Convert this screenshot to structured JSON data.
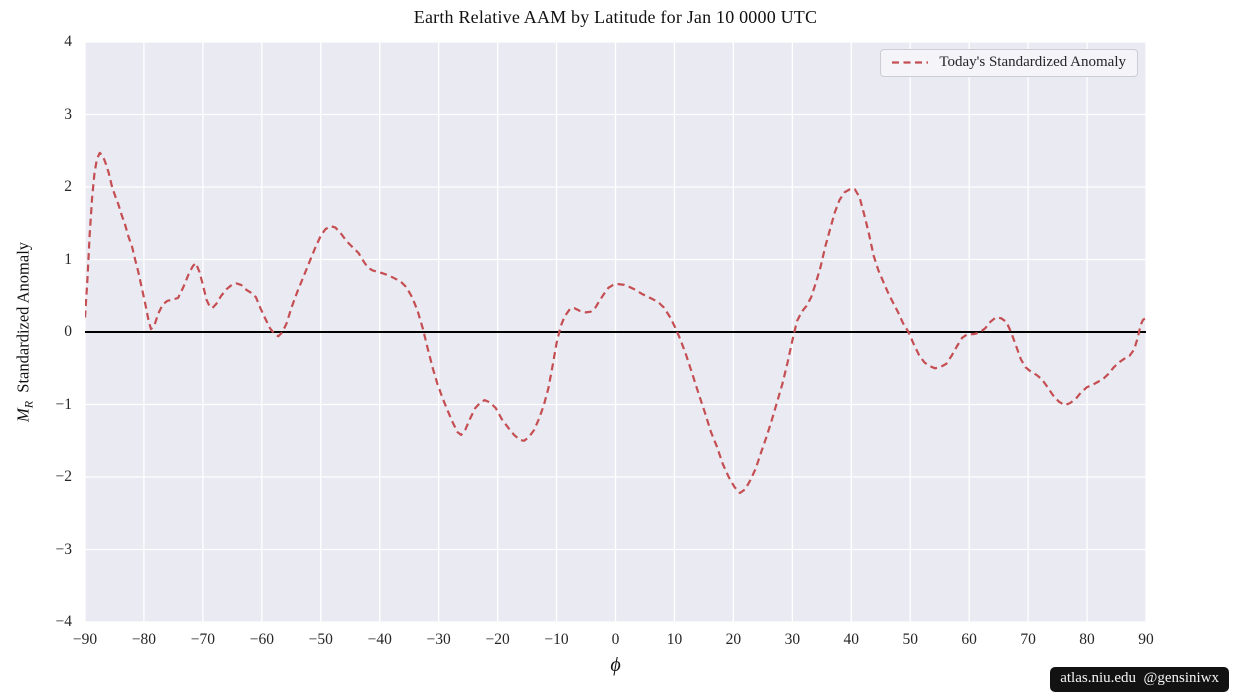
{
  "title": "Earth Relative AAM by Latitude for Jan 10 0000 UTC",
  "watermark": "atlas.niu.edu  @gensiniwx",
  "legend": {
    "label": "Today's Standardized Anomaly"
  },
  "axes": {
    "xlabel": "ϕ",
    "ylabel_m": "M",
    "ylabel_sub": "R",
    "ylabel_text": "  Standardized Anomaly"
  },
  "colors": {
    "figure_bg": "#ffffff",
    "plot_bg": "#eaeaf2",
    "grid": "#ffffff",
    "zero_line": "#000000",
    "series_red": "#c44e52",
    "text": "#262626",
    "watermark_bg": "#121212"
  },
  "chart_data": {
    "type": "line",
    "title": "Earth Relative AAM by Latitude for Jan 10 0000 UTC",
    "xlabel": "ϕ (latitude, degrees)",
    "ylabel": "M_R Standardized Anomaly",
    "xlim": [
      -90,
      90
    ],
    "ylim": [
      -4,
      4
    ],
    "x_ticks": [
      -90,
      -80,
      -70,
      -60,
      -50,
      -40,
      -30,
      -20,
      -10,
      0,
      10,
      20,
      30,
      40,
      50,
      60,
      70,
      80,
      90
    ],
    "y_ticks": [
      -4,
      -3,
      -2,
      -1,
      0,
      1,
      2,
      3,
      4
    ],
    "grid": true,
    "zero_line_y": 0,
    "legend_position": "upper right",
    "series": [
      {
        "name": "Today's Standardized Anomaly",
        "color": "#c44e52",
        "style": "dashed",
        "points": [
          [
            -90.0,
            0.2
          ],
          [
            -89.6,
            0.72
          ],
          [
            -89.2,
            1.35
          ],
          [
            -88.8,
            1.85
          ],
          [
            -88.4,
            2.18
          ],
          [
            -88.0,
            2.38
          ],
          [
            -87.5,
            2.47
          ],
          [
            -87.0,
            2.43
          ],
          [
            -86.5,
            2.33
          ],
          [
            -86.0,
            2.2
          ],
          [
            -85.4,
            2.0
          ],
          [
            -84.9,
            1.88
          ],
          [
            -84.3,
            1.75
          ],
          [
            -83.8,
            1.62
          ],
          [
            -83.2,
            1.48
          ],
          [
            -82.6,
            1.31
          ],
          [
            -82.0,
            1.17
          ],
          [
            -81.5,
            1.0
          ],
          [
            -81.0,
            0.84
          ],
          [
            -80.4,
            0.62
          ],
          [
            -79.8,
            0.4
          ],
          [
            -79.2,
            0.15
          ],
          [
            -78.8,
            0.04
          ],
          [
            -78.2,
            0.1
          ],
          [
            -77.6,
            0.25
          ],
          [
            -76.8,
            0.38
          ],
          [
            -76.0,
            0.43
          ],
          [
            -75.0,
            0.45
          ],
          [
            -74.2,
            0.47
          ],
          [
            -73.3,
            0.62
          ],
          [
            -72.4,
            0.8
          ],
          [
            -71.7,
            0.91
          ],
          [
            -71.2,
            0.95
          ],
          [
            -70.6,
            0.83
          ],
          [
            -70.0,
            0.65
          ],
          [
            -69.4,
            0.45
          ],
          [
            -68.9,
            0.36
          ],
          [
            -68.4,
            0.33
          ],
          [
            -67.7,
            0.39
          ],
          [
            -66.9,
            0.5
          ],
          [
            -66.0,
            0.59
          ],
          [
            -65.1,
            0.65
          ],
          [
            -64.3,
            0.67
          ],
          [
            -63.5,
            0.65
          ],
          [
            -62.6,
            0.58
          ],
          [
            -61.8,
            0.54
          ],
          [
            -61.0,
            0.48
          ],
          [
            -60.2,
            0.32
          ],
          [
            -59.4,
            0.18
          ],
          [
            -58.6,
            0.05
          ],
          [
            -57.8,
            -0.03
          ],
          [
            -57.2,
            -0.06
          ],
          [
            -56.5,
            0.0
          ],
          [
            -55.8,
            0.12
          ],
          [
            -55.0,
            0.33
          ],
          [
            -54.0,
            0.55
          ],
          [
            -53.0,
            0.75
          ],
          [
            -52.0,
            0.95
          ],
          [
            -51.0,
            1.15
          ],
          [
            -50.0,
            1.33
          ],
          [
            -49.2,
            1.42
          ],
          [
            -48.3,
            1.46
          ],
          [
            -47.5,
            1.44
          ],
          [
            -46.5,
            1.35
          ],
          [
            -45.6,
            1.25
          ],
          [
            -44.6,
            1.17
          ],
          [
            -43.6,
            1.09
          ],
          [
            -42.7,
            0.97
          ],
          [
            -42.0,
            0.89
          ],
          [
            -41.2,
            0.85
          ],
          [
            -40.4,
            0.83
          ],
          [
            -39.5,
            0.81
          ],
          [
            -38.5,
            0.78
          ],
          [
            -37.5,
            0.74
          ],
          [
            -36.5,
            0.7
          ],
          [
            -35.5,
            0.62
          ],
          [
            -34.5,
            0.48
          ],
          [
            -33.6,
            0.3
          ],
          [
            -32.7,
            0.05
          ],
          [
            -31.8,
            -0.25
          ],
          [
            -31.0,
            -0.5
          ],
          [
            -30.2,
            -0.72
          ],
          [
            -29.3,
            -0.92
          ],
          [
            -28.5,
            -1.08
          ],
          [
            -27.6,
            -1.25
          ],
          [
            -26.8,
            -1.38
          ],
          [
            -26.2,
            -1.42
          ],
          [
            -25.5,
            -1.35
          ],
          [
            -24.7,
            -1.2
          ],
          [
            -23.8,
            -1.05
          ],
          [
            -23.0,
            -0.98
          ],
          [
            -22.2,
            -0.94
          ],
          [
            -21.3,
            -0.97
          ],
          [
            -20.3,
            -1.05
          ],
          [
            -19.3,
            -1.2
          ],
          [
            -18.2,
            -1.32
          ],
          [
            -17.2,
            -1.42
          ],
          [
            -16.2,
            -1.49
          ],
          [
            -15.5,
            -1.5
          ],
          [
            -14.7,
            -1.45
          ],
          [
            -13.8,
            -1.35
          ],
          [
            -13.0,
            -1.2
          ],
          [
            -12.2,
            -1.02
          ],
          [
            -11.4,
            -0.78
          ],
          [
            -10.7,
            -0.48
          ],
          [
            -10.0,
            -0.15
          ],
          [
            -9.3,
            0.08
          ],
          [
            -8.6,
            0.22
          ],
          [
            -7.7,
            0.32
          ],
          [
            -7.0,
            0.33
          ],
          [
            -6.0,
            0.29
          ],
          [
            -5.0,
            0.27
          ],
          [
            -4.2,
            0.28
          ],
          [
            -3.4,
            0.34
          ],
          [
            -2.8,
            0.42
          ],
          [
            -2.0,
            0.52
          ],
          [
            -1.2,
            0.61
          ],
          [
            -0.4,
            0.65
          ],
          [
            0.5,
            0.66
          ],
          [
            1.5,
            0.65
          ],
          [
            2.4,
            0.62
          ],
          [
            3.4,
            0.58
          ],
          [
            4.4,
            0.53
          ],
          [
            5.4,
            0.49
          ],
          [
            6.4,
            0.45
          ],
          [
            7.4,
            0.4
          ],
          [
            8.2,
            0.34
          ],
          [
            9.3,
            0.2
          ],
          [
            10.2,
            0.05
          ],
          [
            11.0,
            -0.1
          ],
          [
            12.0,
            -0.32
          ],
          [
            13.0,
            -0.57
          ],
          [
            14.1,
            -0.85
          ],
          [
            15.2,
            -1.12
          ],
          [
            16.2,
            -1.38
          ],
          [
            17.2,
            -1.58
          ],
          [
            18.2,
            -1.82
          ],
          [
            19.2,
            -2.0
          ],
          [
            20.2,
            -2.14
          ],
          [
            21.1,
            -2.22
          ],
          [
            22.0,
            -2.17
          ],
          [
            22.9,
            -2.04
          ],
          [
            23.8,
            -1.88
          ],
          [
            24.7,
            -1.66
          ],
          [
            25.6,
            -1.45
          ],
          [
            26.5,
            -1.22
          ],
          [
            27.4,
            -0.97
          ],
          [
            28.3,
            -0.72
          ],
          [
            29.2,
            -0.42
          ],
          [
            30.0,
            -0.12
          ],
          [
            30.8,
            0.15
          ],
          [
            31.6,
            0.28
          ],
          [
            32.4,
            0.36
          ],
          [
            33.2,
            0.48
          ],
          [
            34.0,
            0.68
          ],
          [
            34.8,
            0.9
          ],
          [
            35.6,
            1.18
          ],
          [
            36.4,
            1.42
          ],
          [
            37.2,
            1.65
          ],
          [
            38.0,
            1.82
          ],
          [
            38.9,
            1.93
          ],
          [
            39.8,
            1.97
          ],
          [
            40.6,
            1.97
          ],
          [
            41.4,
            1.86
          ],
          [
            42.2,
            1.62
          ],
          [
            43.0,
            1.35
          ],
          [
            43.8,
            1.05
          ],
          [
            44.6,
            0.85
          ],
          [
            45.4,
            0.7
          ],
          [
            46.2,
            0.55
          ],
          [
            47.0,
            0.42
          ],
          [
            47.9,
            0.28
          ],
          [
            48.8,
            0.12
          ],
          [
            49.7,
            0.0
          ],
          [
            50.6,
            -0.17
          ],
          [
            51.5,
            -0.32
          ],
          [
            52.4,
            -0.42
          ],
          [
            53.3,
            -0.47
          ],
          [
            54.2,
            -0.5
          ],
          [
            55.2,
            -0.48
          ],
          [
            56.1,
            -0.44
          ],
          [
            57.0,
            -0.33
          ],
          [
            57.9,
            -0.2
          ],
          [
            58.8,
            -0.08
          ],
          [
            59.7,
            -0.03
          ],
          [
            60.7,
            -0.03
          ],
          [
            61.7,
            -0.01
          ],
          [
            62.7,
            0.05
          ],
          [
            63.6,
            0.14
          ],
          [
            64.5,
            0.2
          ],
          [
            65.4,
            0.19
          ],
          [
            66.3,
            0.14
          ],
          [
            67.1,
            0.0
          ],
          [
            68.0,
            -0.2
          ],
          [
            68.8,
            -0.38
          ],
          [
            69.6,
            -0.49
          ],
          [
            70.5,
            -0.55
          ],
          [
            71.4,
            -0.59
          ],
          [
            72.3,
            -0.65
          ],
          [
            73.2,
            -0.75
          ],
          [
            74.2,
            -0.87
          ],
          [
            75.2,
            -0.96
          ],
          [
            76.2,
            -1.01
          ],
          [
            77.1,
            -0.98
          ],
          [
            78.1,
            -0.92
          ],
          [
            79.0,
            -0.83
          ],
          [
            80.0,
            -0.76
          ],
          [
            80.9,
            -0.73
          ],
          [
            81.8,
            -0.69
          ],
          [
            82.7,
            -0.65
          ],
          [
            83.6,
            -0.58
          ],
          [
            84.5,
            -0.49
          ],
          [
            85.4,
            -0.42
          ],
          [
            86.3,
            -0.37
          ],
          [
            87.2,
            -0.33
          ],
          [
            88.0,
            -0.24
          ],
          [
            88.6,
            -0.08
          ],
          [
            89.1,
            0.1
          ],
          [
            89.5,
            0.17
          ],
          [
            90.0,
            0.19
          ]
        ]
      }
    ]
  }
}
